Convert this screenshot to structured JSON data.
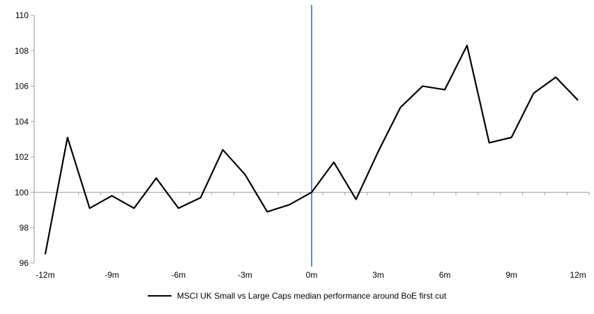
{
  "chart_data": {
    "type": "line",
    "title": "",
    "xlabel": "",
    "ylabel": "",
    "x": [
      -12,
      -11,
      -10,
      -9,
      -8,
      -7,
      -6,
      -5,
      -4,
      -3,
      -2,
      -1,
      0,
      1,
      2,
      3,
      4,
      5,
      6,
      7,
      8,
      9,
      10,
      11,
      12
    ],
    "series": [
      {
        "name": "MSCI UK Small vs Large Caps median performance around BoE first cut",
        "color": "#000000",
        "values": [
          96.5,
          103.1,
          99.1,
          99.8,
          99.1,
          100.8,
          99.1,
          99.7,
          102.4,
          101.0,
          98.9,
          99.3,
          100.0,
          101.7,
          99.6,
          102.3,
          104.8,
          106.0,
          105.8,
          108.3,
          102.8,
          103.1,
          105.6,
          106.5,
          105.2
        ]
      }
    ],
    "ylim": [
      96,
      110
    ],
    "y_ticks": [
      110,
      108,
      106,
      104,
      102,
      100,
      98,
      96
    ],
    "x_tick_labels": [
      "-12m",
      "-9m",
      "-6m",
      "-3m",
      "0m",
      "3m",
      "6m",
      "9m",
      "12m"
    ],
    "x_tick_label_months": [
      -12,
      -9,
      -6,
      -3,
      0,
      3,
      6,
      9,
      12
    ],
    "baseline_value": 100,
    "event_line": {
      "at_month": 0,
      "color": "#4f81bd"
    },
    "axis_color": "#a6a6a6",
    "grid": "single horizontal line at 100",
    "legend_position": "bottom-center"
  }
}
